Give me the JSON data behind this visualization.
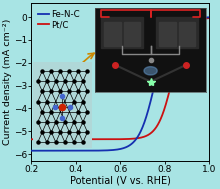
{
  "xlabel": "Potential (V vs. RHE)",
  "ylabel": "Current density (mA cm⁻²)",
  "xlim": [
    0.2,
    1.0
  ],
  "ylim": [
    -6.3,
    0.6
  ],
  "xticks": [
    0.2,
    0.4,
    0.6,
    0.8,
    1.0
  ],
  "yticks": [
    -6,
    -5,
    -4,
    -3,
    -2,
    -1,
    0
  ],
  "background_color": "#a8e4e4",
  "plot_bg_color": "#a8e4e4",
  "fe_n_c_color": "#1530b0",
  "pt_c_color": "#cc1111",
  "legend_labels": [
    "Fe-N-C",
    "Pt/C"
  ],
  "xlabel_fontsize": 7.0,
  "ylabel_fontsize": 6.8,
  "tick_fontsize": 6.5,
  "legend_fontsize": 6.2,
  "fe_lim": -5.85,
  "fe_half": 0.755,
  "fe_slope": 28,
  "pt_lim": -5.35,
  "pt_half": 0.835,
  "pt_slope": 30
}
